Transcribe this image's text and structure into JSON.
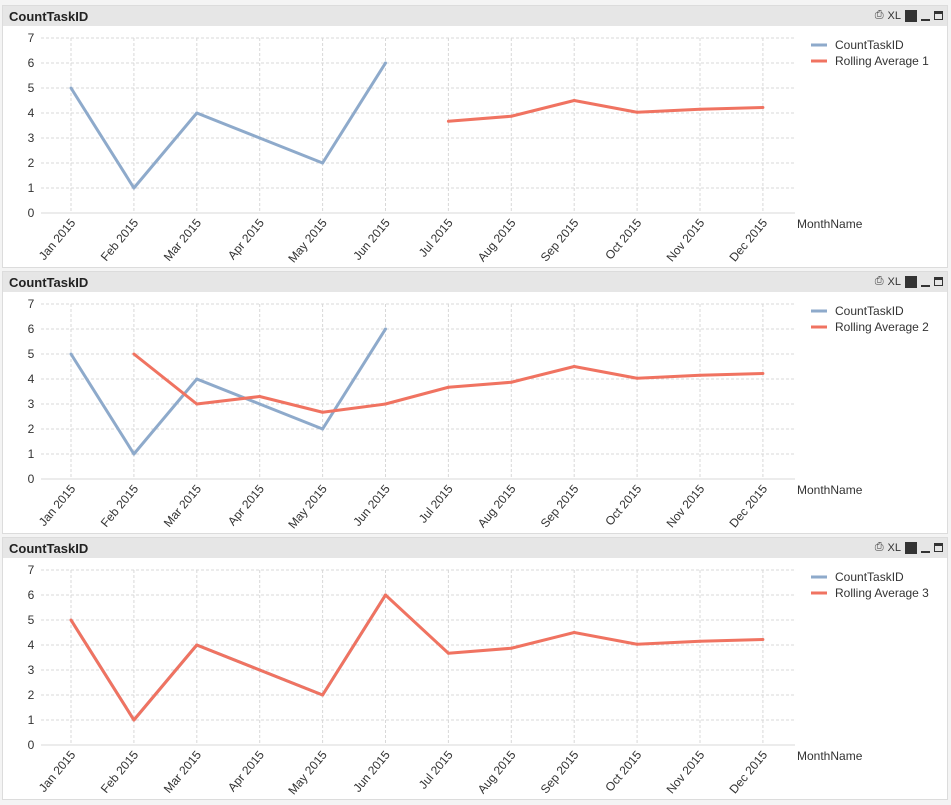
{
  "colors": {
    "count": "#8eaacb",
    "rolling": "#f07361",
    "grid": "#d8d8d8"
  },
  "header_icons": [
    "print-icon",
    "xl-icon",
    "chart-type-icon",
    "minimize-icon",
    "maximize-icon"
  ],
  "chart_data": [
    {
      "type": "line",
      "title": "CountTaskID",
      "xlabel": "MonthName",
      "ylim": [
        0,
        7
      ],
      "yticks": [
        0,
        1,
        2,
        3,
        4,
        5,
        6,
        7
      ],
      "grid": true,
      "legend": "top-right",
      "categories": [
        "Jan 2015",
        "Feb 2015",
        "Mar 2015",
        "Apr 2015",
        "May 2015",
        "Jun 2015",
        "Jul 2015",
        "Aug 2015",
        "Sep 2015",
        "Oct 2015",
        "Nov 2015",
        "Dec 2015"
      ],
      "series": [
        {
          "name": "CountTaskID",
          "values": [
            5,
            1,
            4,
            3,
            2,
            6,
            null,
            null,
            null,
            null,
            null,
            null
          ]
        },
        {
          "name": "Rolling Average 1",
          "values": [
            null,
            null,
            null,
            null,
            null,
            null,
            3.67,
            3.87,
            4.5,
            4.03,
            4.15,
            4.22
          ]
        }
      ]
    },
    {
      "type": "line",
      "title": "CountTaskID",
      "xlabel": "MonthName",
      "ylim": [
        0,
        7
      ],
      "yticks": [
        0,
        1,
        2,
        3,
        4,
        5,
        6,
        7
      ],
      "grid": true,
      "legend": "top-right",
      "categories": [
        "Jan 2015",
        "Feb 2015",
        "Mar 2015",
        "Apr 2015",
        "May 2015",
        "Jun 2015",
        "Jul 2015",
        "Aug 2015",
        "Sep 2015",
        "Oct 2015",
        "Nov 2015",
        "Dec 2015"
      ],
      "series": [
        {
          "name": "CountTaskID",
          "values": [
            5,
            1,
            4,
            3,
            2,
            6,
            null,
            null,
            null,
            null,
            null,
            null
          ]
        },
        {
          "name": "Rolling Average 2",
          "values": [
            null,
            5,
            3,
            3.3,
            2.67,
            3,
            3.67,
            3.87,
            4.5,
            4.03,
            4.15,
            4.22
          ]
        }
      ]
    },
    {
      "type": "line",
      "title": "CountTaskID",
      "xlabel": "MonthName",
      "ylim": [
        0,
        7
      ],
      "yticks": [
        0,
        1,
        2,
        3,
        4,
        5,
        6,
        7
      ],
      "grid": true,
      "legend": "top-right",
      "categories": [
        "Jan 2015",
        "Feb 2015",
        "Mar 2015",
        "Apr 2015",
        "May 2015",
        "Jun 2015",
        "Jul 2015",
        "Aug 2015",
        "Sep 2015",
        "Oct 2015",
        "Nov 2015",
        "Dec 2015"
      ],
      "series": [
        {
          "name": "CountTaskID",
          "values": [
            5,
            1,
            4,
            3,
            2,
            6,
            null,
            null,
            null,
            null,
            null,
            null
          ]
        },
        {
          "name": "Rolling Average 3",
          "values": [
            5,
            1,
            4,
            3,
            2,
            6,
            3.67,
            3.87,
            4.5,
            4.03,
            4.15,
            4.22
          ]
        }
      ]
    }
  ]
}
